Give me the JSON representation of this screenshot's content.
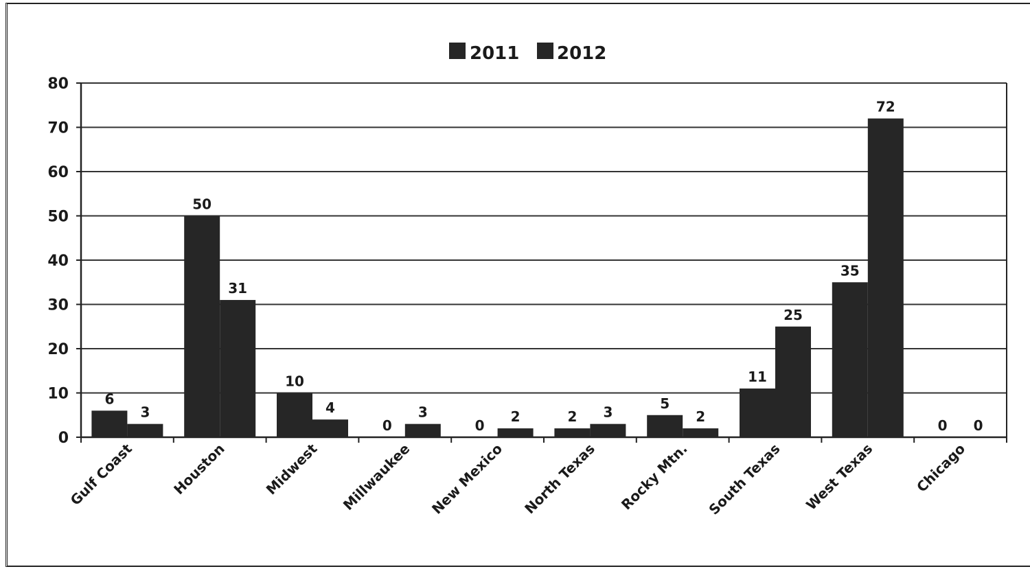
{
  "chart_data": {
    "type": "bar",
    "categories": [
      "Gulf Coast",
      "Houston",
      "Midwest",
      "Millwaukee",
      "New Mexico",
      "North Texas",
      "Rocky Mtn.",
      "South Texas",
      "West Texas",
      "Chicago"
    ],
    "series": [
      {
        "name": "2011",
        "values": [
          6,
          50,
          10,
          0,
          0,
          2,
          5,
          11,
          35,
          0
        ],
        "color": "#262626"
      },
      {
        "name": "2012",
        "values": [
          3,
          31,
          4,
          3,
          2,
          3,
          2,
          25,
          72,
          0
        ],
        "color": "#262626"
      }
    ],
    "data_labels": {
      "2011": [
        "6",
        "50",
        "10",
        "0",
        "0",
        "2",
        "5",
        "11",
        "35",
        "0"
      ],
      "2012": [
        "3",
        "31",
        "4",
        "3",
        "2",
        "3",
        "2",
        "25",
        "72",
        "0"
      ]
    },
    "ylim": [
      0,
      80
    ],
    "yticks": [
      "0",
      "10",
      "20",
      "30",
      "40",
      "50",
      "60",
      "70",
      "80"
    ],
    "grid": true,
    "legend_position": "top-center"
  }
}
